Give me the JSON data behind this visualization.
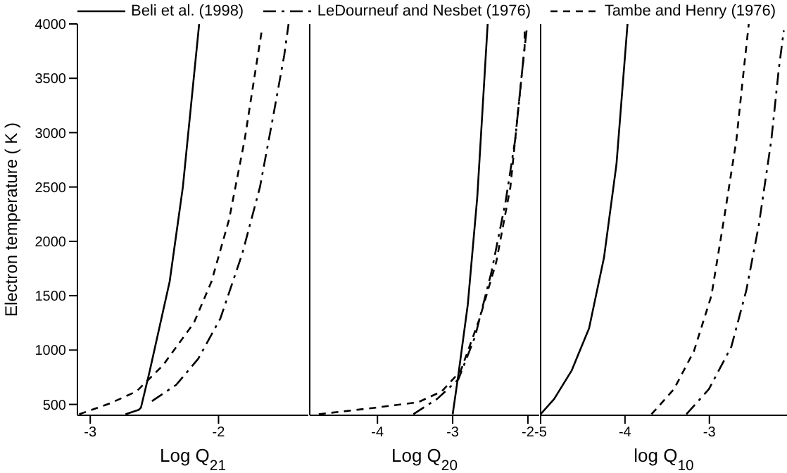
{
  "chart_data": [
    {
      "type": "line",
      "xlabel": "Log Q$_{21}$",
      "ylabel": "Electron temperature ( K )",
      "legend": "top",
      "xlim": [
        -3.1,
        -1.3
      ],
      "xticks": [
        -3,
        -2
      ],
      "ylim": [
        400,
        4000
      ],
      "yticks": [
        500,
        1000,
        1500,
        2000,
        2500,
        3000,
        3500,
        4000
      ],
      "series": [
        {
          "name": "Beli et al. (1998)",
          "color": "#000000",
          "line_style": "solid",
          "x": [
            -2.725,
            -2.622,
            -2.605,
            -2.536,
            -2.381,
            -2.278,
            -2.151
          ],
          "values": [
            410,
            450,
            470,
            810,
            1630,
            2500,
            4000
          ]
        },
        {
          "name": "LeDourneuf and Nesbet (1976)",
          "color": "#000000",
          "line_style": "dashdot",
          "x": [
            -2.519,
            -2.33,
            -2.158,
            -1.986,
            -1.814,
            -1.677,
            -1.574,
            -1.488,
            -1.454
          ],
          "values": [
            530,
            680,
            920,
            1290,
            1890,
            2500,
            3150,
            3710,
            4000
          ]
        },
        {
          "name": "Tambe and Henry (1976)",
          "color": "#000000",
          "line_style": "dashed",
          "x": [
            -3.086,
            -2.845,
            -2.639,
            -2.433,
            -2.192,
            -2.055,
            -1.918,
            -1.797,
            -1.711,
            -1.66
          ],
          "values": [
            410,
            510,
            620,
            860,
            1250,
            1630,
            2200,
            2930,
            3580,
            3960
          ]
        }
      ]
    },
    {
      "type": "line",
      "xlabel": "Log Q$_{20}$",
      "tick_labels": "x",
      "xlim": [
        -4.9,
        -1.85
      ],
      "xticks": [
        -4,
        -3,
        -2
      ],
      "ylim": [
        400,
        4000
      ],
      "yticks": [
        500,
        1000,
        1500,
        2000,
        2500,
        3000,
        3500,
        4000
      ],
      "series": [
        {
          "color": "#000000",
          "line_style": "solid",
          "x": [
            -3.0,
            -2.925,
            -2.799,
            -2.673,
            -2.535
          ],
          "values": [
            410,
            770,
            1420,
            2410,
            4000
          ]
        },
        {
          "color": "#000000",
          "line_style": "dashdot",
          "x": [
            -3.522,
            -3.208,
            -2.925,
            -2.704,
            -2.484,
            -2.296,
            -2.17,
            -2.075,
            -2.013
          ],
          "values": [
            410,
            550,
            730,
            1120,
            1720,
            2370,
            2930,
            3580,
            3970
          ]
        },
        {
          "color": "#000000",
          "line_style": "dashed",
          "x": [
            -4.78,
            -4.025,
            -3.459,
            -3.145,
            -2.893,
            -2.642,
            -2.421,
            -2.233,
            -2.138,
            -2.044,
            -2.044
          ],
          "values": [
            410,
            470,
            520,
            620,
            810,
            1290,
            1810,
            2500,
            3150,
            3790,
            3970
          ]
        }
      ]
    },
    {
      "type": "line",
      "xlabel": "log Q$_{10}$",
      "tick_labels": "x",
      "xlim": [
        -5,
        -2.08
      ],
      "xticks": [
        -5,
        -4,
        -3
      ],
      "ylim": [
        400,
        4000
      ],
      "yticks": [
        500,
        1000,
        1500,
        2000,
        2500,
        3000,
        3500,
        4000
      ],
      "series": [
        {
          "color": "#000000",
          "line_style": "solid",
          "x": [
            -5.0,
            -4.84,
            -4.633,
            -4.426,
            -4.249,
            -4.101,
            -3.97
          ],
          "values": [
            410,
            550,
            810,
            1200,
            1850,
            2710,
            4000
          ]
        },
        {
          "color": "#000000",
          "line_style": "dashdot",
          "x": [
            -3.272,
            -3.006,
            -2.74,
            -2.562,
            -2.414,
            -2.266,
            -2.178,
            -2.118
          ],
          "values": [
            410,
            640,
            1030,
            1550,
            2150,
            2930,
            3580,
            3940
          ]
        },
        {
          "color": "#000000",
          "line_style": "dashed",
          "x": [
            -3.686,
            -3.42,
            -3.183,
            -2.976,
            -2.828,
            -2.68,
            -2.592,
            -2.533
          ],
          "values": [
            410,
            640,
            990,
            1500,
            2200,
            2930,
            3580,
            4000
          ]
        }
      ]
    }
  ]
}
